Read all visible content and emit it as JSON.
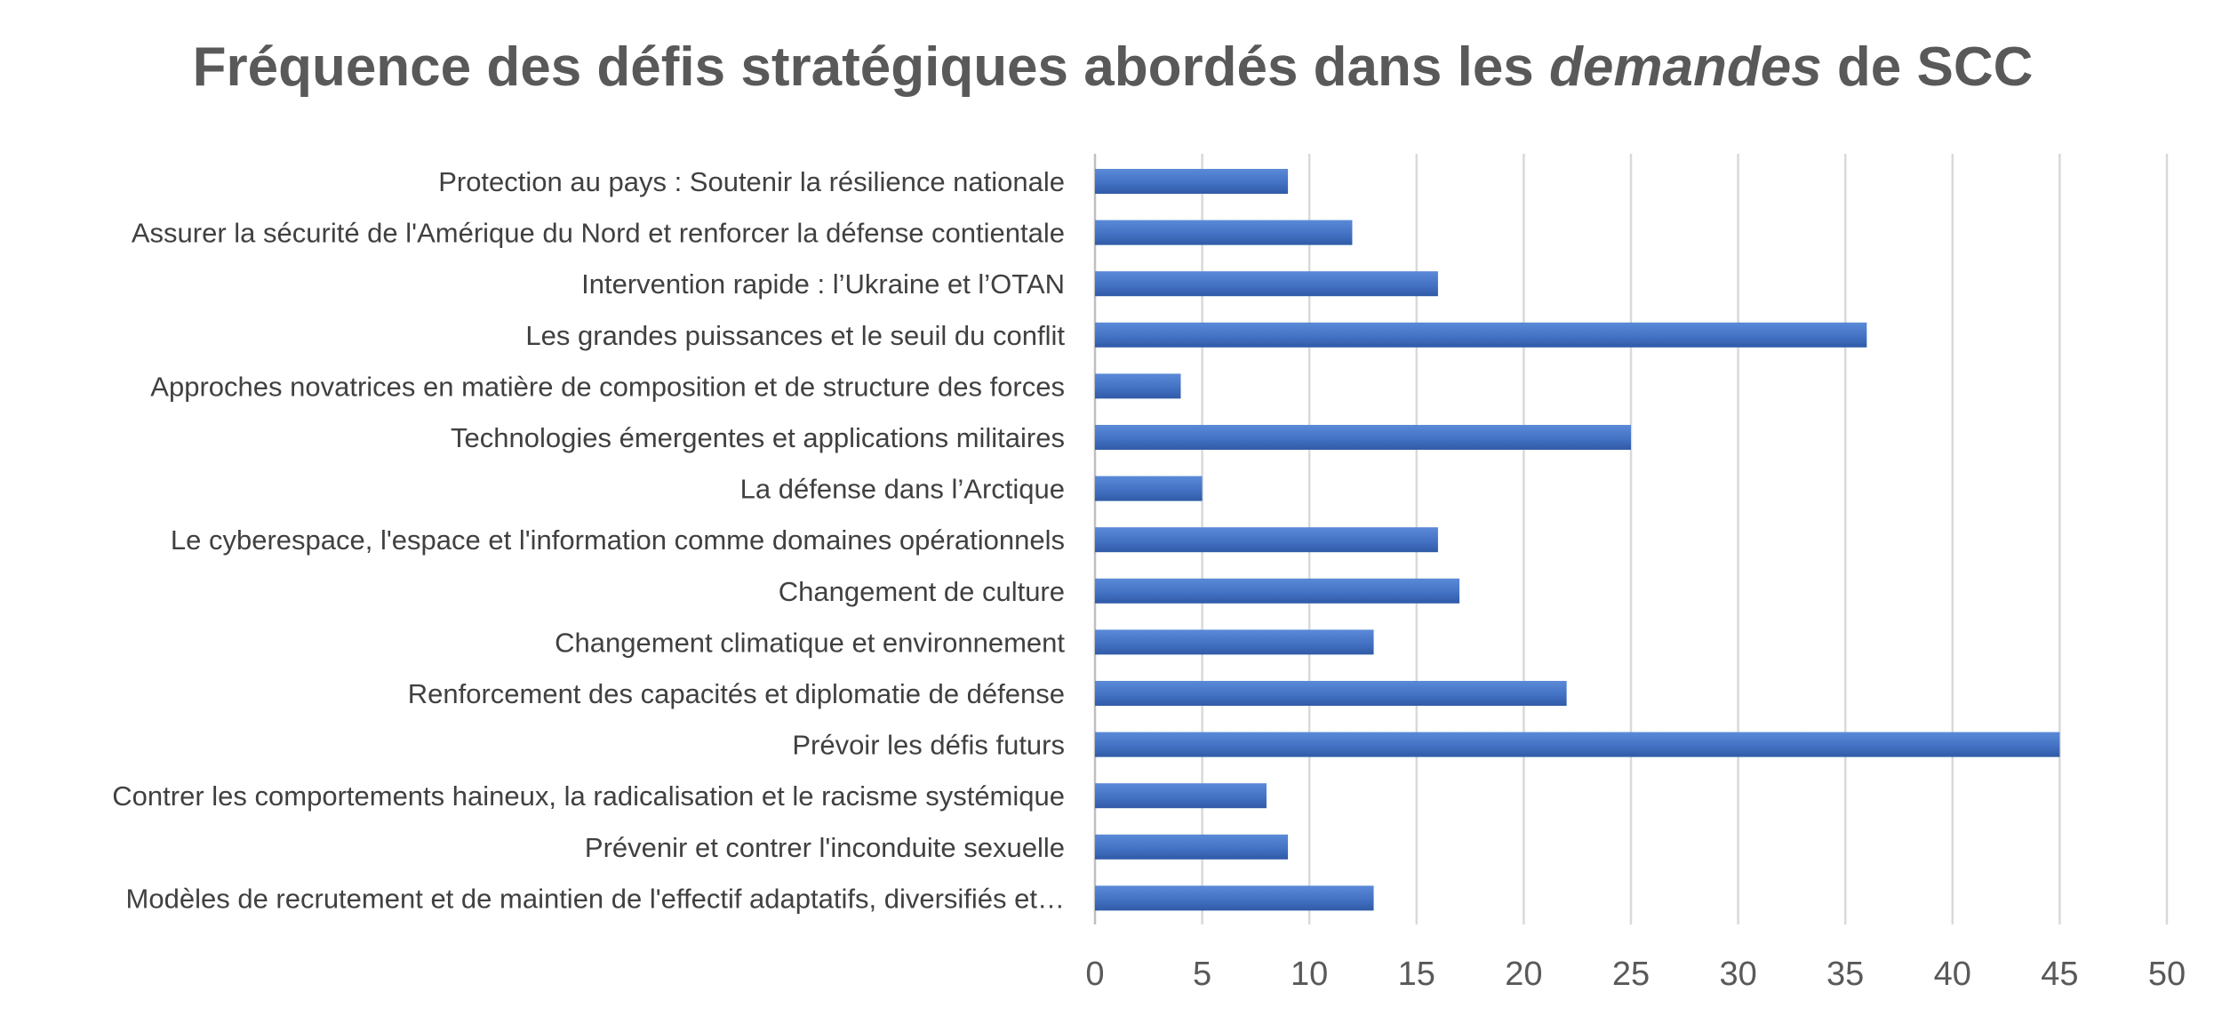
{
  "chart_data": {
    "type": "bar",
    "orientation": "horizontal",
    "title": {
      "before": "Fréquence des défis stratégiques abordés dans les ",
      "emphasis": "demandes",
      "after": " de SCC"
    },
    "categories": [
      "Protection au pays : Soutenir la résilience nationale",
      "Assurer la sécurité de l'Amérique du Nord et renforcer la défense contientale",
      "Intervention rapide : l’Ukraine et l’OTAN",
      "Les grandes puissances et le seuil du conflit",
      "Approches novatrices en matière de composition et de structure des forces",
      "Technologies émergentes et applications militaires",
      "La défense dans l’Arctique",
      "Le cyberespace, l'espace et l'information comme domaines opérationnels",
      "Changement de culture",
      "Changement climatique et environnement",
      "Renforcement des capacités et diplomatie de défense",
      "Prévoir les défis futurs",
      "Contrer les comportements haineux, la radicalisation et le racisme systémique",
      "Prévenir et contrer l'inconduite sexuelle",
      "Modèles de recrutement et de maintien de l'effectif adaptatifs, diversifiés et…"
    ],
    "values": [
      9,
      12,
      16,
      36,
      4,
      25,
      5,
      16,
      17,
      13,
      22,
      45,
      8,
      9,
      13
    ],
    "xlim": [
      0,
      50
    ],
    "xticks": [
      "0",
      "5",
      "10",
      "15",
      "20",
      "25",
      "30",
      "35",
      "40",
      "45",
      "50"
    ],
    "grid": true,
    "legend": "none",
    "xlabel": "",
    "ylabel": ""
  },
  "colors": {
    "bar": "#4472c4",
    "bar_light": "#5b8ad8",
    "bar_dark": "#2f5aa6",
    "grid": "#d9d9d9",
    "axis": "#bfbfbf",
    "title": "#595959",
    "label": "#404040"
  }
}
